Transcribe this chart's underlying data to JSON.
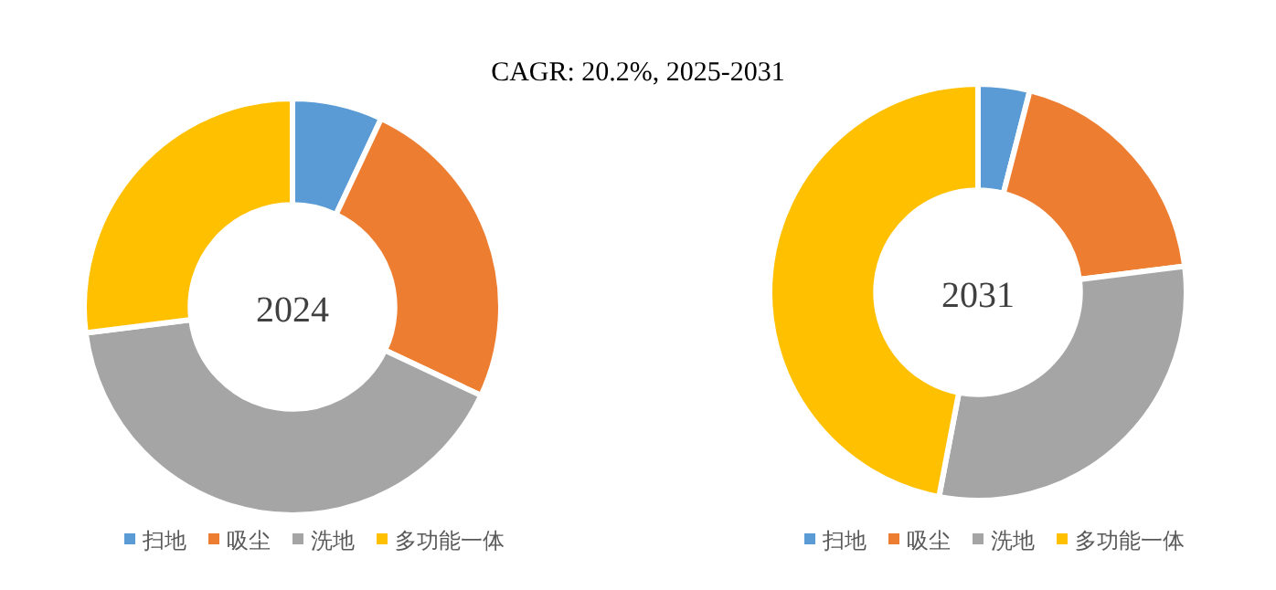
{
  "chart_data": [
    {
      "type": "donut",
      "title": "2024",
      "annotations": [
        "CAGR: 20.2%, 2025-2031"
      ],
      "categories": [
        "扫地",
        "吸尘",
        "洗地",
        "多功能一体"
      ],
      "values": [
        7,
        25,
        41,
        27
      ],
      "colors": [
        "#5b9bd5",
        "#ed7d31",
        "#a5a5a5",
        "#ffc000"
      ],
      "legend": "bottom"
    },
    {
      "type": "donut",
      "title": "2031",
      "categories": [
        "扫地",
        "吸尘",
        "洗地",
        "多功能一体"
      ],
      "values": [
        4,
        19,
        30,
        47
      ],
      "colors": [
        "#5b9bd5",
        "#ed7d31",
        "#a5a5a5",
        "#ffc000"
      ],
      "legend": "bottom"
    }
  ]
}
